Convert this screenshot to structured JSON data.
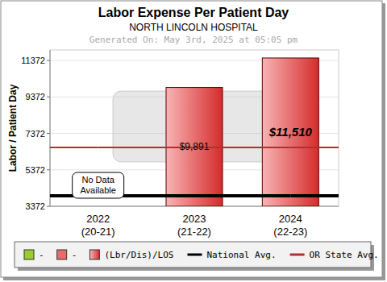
{
  "chart_data": {
    "type": "bar",
    "title": "Labor Expense Per Patient Day",
    "subtitle": "NORTH LINCOLN HOSPITAL",
    "caption": "Generated On: May 3rd, 2025 at 05:05 pm",
    "y_label": "Labor / Patient Day",
    "categories": [
      "2022\n(20-21)",
      "2023\n(21-22)",
      "2024\n(22-23)"
    ],
    "series": [
      {
        "name": "-",
        "color": "#99cc33",
        "values": [
          null,
          null,
          null
        ]
      },
      {
        "name": "-",
        "color": "#e86a6a",
        "values": [
          null,
          null,
          null
        ]
      },
      {
        "name": "(Lbr/Dis)/LOS",
        "color": "#e05050",
        "values": [
          null,
          9891,
          11510
        ],
        "value_labels": [
          null,
          "$9,891",
          "$11,510"
        ]
      },
      {
        "name": "National Avg.",
        "type": "line",
        "color": "#000000",
        "values": [
          3950,
          3950,
          3950
        ]
      },
      {
        "name": "OR State Avg.",
        "type": "line",
        "color": "#b03030",
        "values": [
          6600,
          6600,
          6600
        ]
      }
    ],
    "annotations": [
      "No Data Available"
    ],
    "ylim": [
      3372,
      11950
    ],
    "yticks": [
      3372,
      5372,
      7372,
      9372,
      11372
    ],
    "grid": true,
    "data_labels": true,
    "legend": "bottom"
  }
}
